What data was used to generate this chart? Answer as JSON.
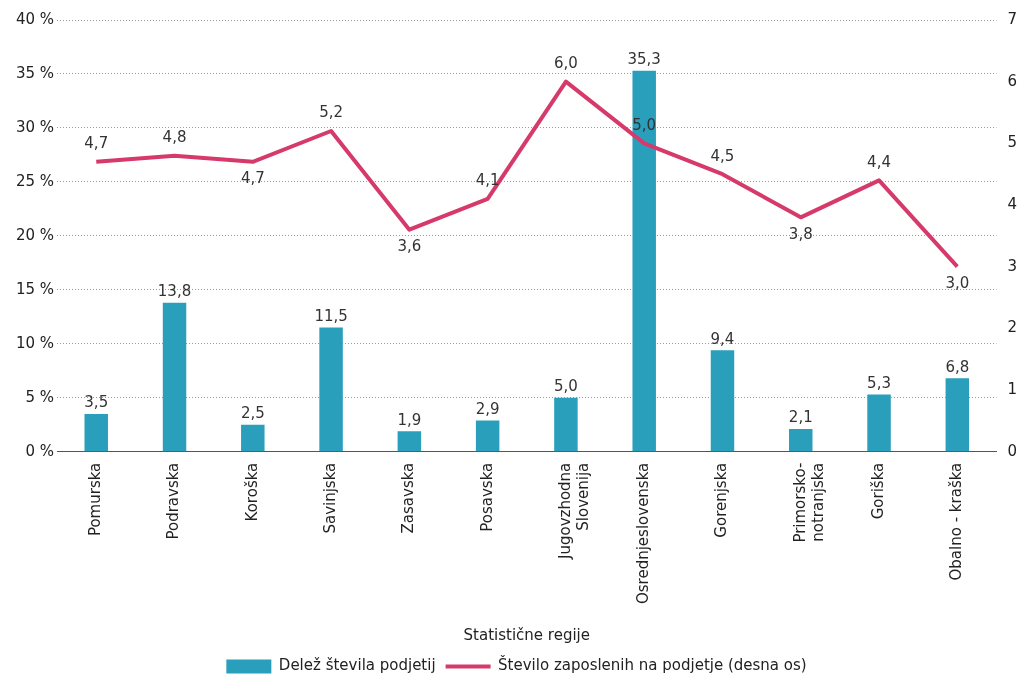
{
  "chart_data": {
    "type": "bar",
    "xlabel": "Statistične regije",
    "categories": [
      "Pomurska",
      "Podravska",
      "Koroška",
      "Savinjska",
      "Zasavska",
      "Posavska",
      "Jugovzhodna\nSlovenija",
      "Osrednjeslovenska",
      "Gorenjska",
      "Primorsko-\nnotranjska",
      "Goriška",
      "Obalno - kraška"
    ],
    "series": [
      {
        "name": "Delež števila podjetij",
        "color": "#2a9fbc",
        "values": [
          3.5,
          13.8,
          2.5,
          11.5,
          1.9,
          2.9,
          5.0,
          35.3,
          9.4,
          2.1,
          5.3,
          6.8
        ],
        "value_labels": [
          "3,5",
          "13,8",
          "2,5",
          "11,5",
          "1,9",
          "2,9",
          "5,0",
          "35,3",
          "9,4",
          "2,1",
          "5,3",
          "6,8"
        ]
      },
      {
        "name": "Število zaposlenih na podjetje (desna os)",
        "type": "line",
        "axis": "y2",
        "color": "#d63a6a",
        "values": [
          4.7,
          4.8,
          4.7,
          5.2,
          3.6,
          4.1,
          6.0,
          5.0,
          4.5,
          3.8,
          4.4,
          3.0
        ],
        "value_labels": [
          "4,7",
          "4,8",
          "4,7",
          "5,2",
          "3,6",
          "4,1",
          "6,0",
          "5,0",
          "4,5",
          "3,8",
          "4,4",
          "3,0"
        ]
      }
    ],
    "ylim": [
      0,
      40
    ],
    "yticks": [
      {
        "value": 0,
        "label": "0 %"
      },
      {
        "value": 5,
        "label": "5 %"
      },
      {
        "value": 10,
        "label": "10 %"
      },
      {
        "value": 15,
        "label": "15 %"
      },
      {
        "value": 20,
        "label": "20 %"
      },
      {
        "value": 25,
        "label": "25 %"
      },
      {
        "value": 30,
        "label": "30 %"
      },
      {
        "value": 35,
        "label": "35 %"
      },
      {
        "value": 40,
        "label": "40 %"
      }
    ],
    "y2lim": [
      0,
      7
    ],
    "y2ticks": [
      0,
      1,
      2,
      3,
      4,
      5,
      6,
      7
    ],
    "grid": "y",
    "legend": "bottom",
    "marker": "none",
    "line_style": "solid"
  }
}
